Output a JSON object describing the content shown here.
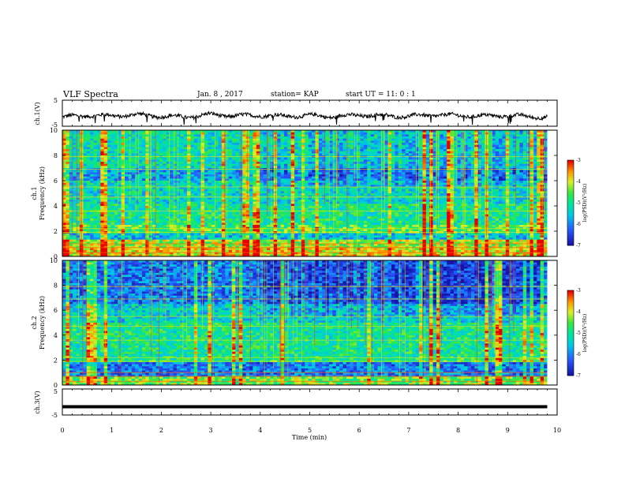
{
  "header": {
    "title": "VLF Spectra",
    "date": "Jan. 8 , 2017",
    "station": "station= KAP",
    "start": "start UT = 11: 0 : 1"
  },
  "chart_data": [
    {
      "type": "line",
      "name": "ch1-waveform",
      "ylabel": "ch.1(V)",
      "ylim": [
        -5,
        5
      ],
      "yticks": [
        "5",
        "-5"
      ],
      "xlim": [
        0,
        10
      ],
      "description_of_shape": "noisy waveform around -1 V with amplitude about ±2 V",
      "x": [
        0,
        0.5,
        1,
        1.5,
        2,
        2.5,
        3,
        3.5,
        4,
        4.5,
        5,
        5.5,
        6,
        6.5,
        7,
        7.5,
        8,
        8.5,
        9,
        9.5,
        9.8
      ],
      "y": [
        -1.5,
        -0.8,
        -1.0,
        -0.6,
        -1.2,
        -1.4,
        -0.5,
        -1.0,
        -0.8,
        -1.1,
        -0.9,
        -1.3,
        -0.7,
        -1.0,
        -1.2,
        -0.6,
        -0.9,
        -1.1,
        -0.8,
        -1.4,
        -1.5
      ]
    },
    {
      "type": "heatmap",
      "name": "ch1-spectrogram",
      "ylabel": "ch.1",
      "ylabel2": "Frequency (kHz)",
      "ylim": [
        0,
        10
      ],
      "yticks": [
        "0",
        "2",
        "4",
        "6",
        "8",
        "10"
      ],
      "xlim": [
        0,
        10
      ],
      "data_end_min": 9.8,
      "colorbar": {
        "label": "log(PSD)(V²/Hz)",
        "range": [
          -7,
          -3
        ],
        "ticks": [
          "-3",
          "-4",
          "-5",
          "-6",
          "-7"
        ]
      }
    },
    {
      "type": "heatmap",
      "name": "ch2-spectrogram",
      "ylabel": "ch.2",
      "ylabel2": "Frequency (kHz)",
      "ylim": [
        0,
        10
      ],
      "yticks": [
        "0",
        "2",
        "4",
        "6",
        "8",
        "10"
      ],
      "xlim": [
        0,
        10
      ],
      "data_end_min": 9.8,
      "colorbar": {
        "label": "log(PSD)(V²/Hz)",
        "range": [
          -7,
          -3
        ],
        "ticks": [
          "-3",
          "-4",
          "-5",
          "-6",
          "-7"
        ]
      }
    },
    {
      "type": "line",
      "name": "ch3-waveform",
      "ylabel": "ch.3(V)",
      "ylim": [
        -5,
        5
      ],
      "yticks": [
        "5",
        "-5"
      ],
      "xlim": [
        0,
        10
      ],
      "x": [
        0,
        9.8
      ],
      "y": [
        -1.8,
        -1.8
      ]
    }
  ],
  "xaxis": {
    "label": "Time (min)",
    "ticks": [
      "0",
      "1",
      "2",
      "3",
      "4",
      "5",
      "6",
      "7",
      "8",
      "9",
      "10"
    ]
  },
  "colors": {
    "low": "#1010c0",
    "mid": "#00c8c8",
    "high": "#ff0000"
  }
}
